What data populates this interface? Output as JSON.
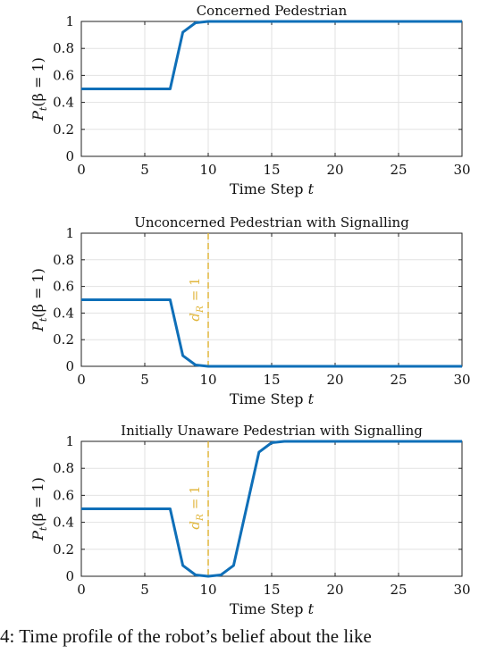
{
  "chart_data": [
    {
      "type": "line",
      "title": "Concerned Pedestrian",
      "xlabel": "Time Step t",
      "ylabel": "P_t(β = 1)",
      "xlim": [
        0,
        30
      ],
      "ylim": [
        0,
        1
      ],
      "xticks": [
        0,
        5,
        10,
        15,
        20,
        25,
        30
      ],
      "yticks": [
        0,
        0.2,
        0.4,
        0.6,
        0.8,
        1
      ],
      "grid": true,
      "series": [
        {
          "color": "#0f6fb8",
          "x": [
            0,
            7,
            8,
            9,
            10,
            30
          ],
          "y": [
            0.5,
            0.5,
            0.92,
            0.99,
            1.0,
            1.0
          ]
        }
      ],
      "vlines": []
    },
    {
      "type": "line",
      "title": "Unconcerned Pedestrian with Signalling",
      "xlabel": "Time Step t",
      "ylabel": "P_t(β = 1)",
      "xlim": [
        0,
        30
      ],
      "ylim": [
        0,
        1
      ],
      "xticks": [
        0,
        5,
        10,
        15,
        20,
        25,
        30
      ],
      "yticks": [
        0,
        0.2,
        0.4,
        0.6,
        0.8,
        1
      ],
      "grid": true,
      "series": [
        {
          "color": "#0f6fb8",
          "x": [
            0,
            7,
            8,
            9,
            10,
            30
          ],
          "y": [
            0.5,
            0.5,
            0.08,
            0.01,
            0.0,
            0.0
          ]
        }
      ],
      "vlines": [
        {
          "x": 10,
          "label": "d_R = 1",
          "color": "#e0b63c"
        }
      ]
    },
    {
      "type": "line",
      "title": "Initially Unaware Pedestrian with Signalling",
      "xlabel": "Time Step t",
      "ylabel": "P_t(β = 1)",
      "xlim": [
        0,
        30
      ],
      "ylim": [
        0,
        1
      ],
      "xticks": [
        0,
        5,
        10,
        15,
        20,
        25,
        30
      ],
      "yticks": [
        0,
        0.2,
        0.4,
        0.6,
        0.8,
        1
      ],
      "grid": true,
      "series": [
        {
          "color": "#0f6fb8",
          "x": [
            0,
            7,
            8,
            9,
            10,
            11,
            12,
            13,
            14,
            15,
            16,
            30
          ],
          "y": [
            0.5,
            0.5,
            0.08,
            0.01,
            0.0,
            0.01,
            0.08,
            0.5,
            0.92,
            0.99,
            1.0,
            1.0
          ]
        }
      ],
      "vlines": [
        {
          "x": 10,
          "label": "d_R = 1",
          "color": "#e0b63c"
        }
      ]
    }
  ],
  "caption": "4: Time profile of the robot’s belief about the like"
}
